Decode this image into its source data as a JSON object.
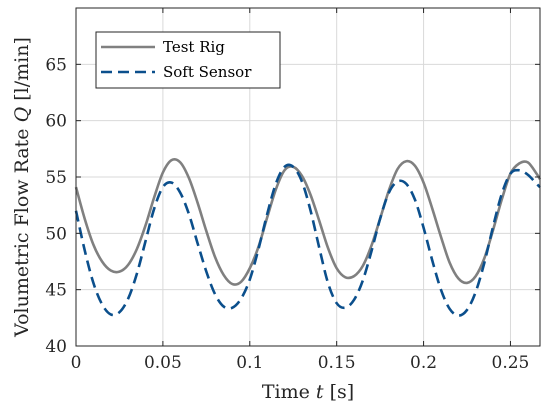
{
  "chart_data": {
    "type": "line",
    "title": "",
    "xlabel": "Time",
    "xlabel_symbol": "t",
    "xlabel_unit": "[s]",
    "ylabel": "Volumetric Flow Rate",
    "ylabel_symbol": "Q",
    "ylabel_unit": "[l/min]",
    "xlim": [
      0,
      0.267
    ],
    "ylim": [
      40,
      70
    ],
    "xticks": [
      0,
      0.05,
      0.1,
      0.15,
      0.2,
      0.25
    ],
    "xtick_labels": [
      "0",
      "0.05",
      "0.1",
      "0.15",
      "0.2",
      "0.25"
    ],
    "yticks": [
      40,
      45,
      50,
      55,
      60,
      65
    ],
    "ytick_labels": [
      "40",
      "45",
      "50",
      "55",
      "60",
      "65"
    ],
    "grid": true,
    "legend_position": "top-left",
    "series": [
      {
        "name": "Test Rig",
        "color": "#808080",
        "style": "solid",
        "x": [
          0,
          0.005,
          0.01,
          0.015,
          0.02,
          0.025,
          0.03,
          0.035,
          0.04,
          0.045,
          0.05,
          0.055,
          0.06,
          0.065,
          0.07,
          0.075,
          0.08,
          0.085,
          0.09,
          0.095,
          0.1,
          0.105,
          0.11,
          0.115,
          0.12,
          0.125,
          0.13,
          0.135,
          0.14,
          0.145,
          0.15,
          0.155,
          0.16,
          0.165,
          0.17,
          0.175,
          0.18,
          0.185,
          0.19,
          0.195,
          0.2,
          0.205,
          0.21,
          0.215,
          0.22,
          0.225,
          0.23,
          0.235,
          0.24,
          0.245,
          0.25,
          0.255,
          0.26,
          0.265,
          0.267
        ],
        "y": [
          54.1,
          51.3,
          49.0,
          47.5,
          46.7,
          46.6,
          47.2,
          48.6,
          50.7,
          53.2,
          55.4,
          56.5,
          56.3,
          54.9,
          52.7,
          50.2,
          47.9,
          46.3,
          45.5,
          45.7,
          46.9,
          48.8,
          51.4,
          53.9,
          55.6,
          55.9,
          55.1,
          53.4,
          51.1,
          48.7,
          46.9,
          46.1,
          46.2,
          47.1,
          48.9,
          51.3,
          53.8,
          55.7,
          56.4,
          56.0,
          54.5,
          52.2,
          49.7,
          47.4,
          46.0,
          45.6,
          46.2,
          47.8,
          50.3,
          53.0,
          55.3,
          56.2,
          56.3,
          55.3,
          54.8
        ]
      },
      {
        "name": "Soft Sensor",
        "color": "#0b4f8c",
        "style": "dashed",
        "x": [
          0,
          0.005,
          0.01,
          0.015,
          0.02,
          0.025,
          0.03,
          0.035,
          0.04,
          0.045,
          0.05,
          0.055,
          0.06,
          0.065,
          0.07,
          0.075,
          0.08,
          0.085,
          0.09,
          0.095,
          0.1,
          0.105,
          0.11,
          0.115,
          0.12,
          0.125,
          0.13,
          0.135,
          0.14,
          0.145,
          0.15,
          0.155,
          0.16,
          0.165,
          0.17,
          0.175,
          0.18,
          0.185,
          0.19,
          0.195,
          0.2,
          0.205,
          0.21,
          0.215,
          0.22,
          0.225,
          0.23,
          0.235,
          0.24,
          0.245,
          0.25,
          0.255,
          0.26,
          0.265,
          0.267
        ],
        "y": [
          52.0,
          48.5,
          45.6,
          43.7,
          42.8,
          43.0,
          44.2,
          46.4,
          49.3,
          52.2,
          54.1,
          54.5,
          53.6,
          51.7,
          49.1,
          46.6,
          44.6,
          43.5,
          43.4,
          44.2,
          45.9,
          48.6,
          51.7,
          54.4,
          55.9,
          55.9,
          54.6,
          52.0,
          48.7,
          45.6,
          43.8,
          43.4,
          44.1,
          45.8,
          48.4,
          51.3,
          53.6,
          54.6,
          54.4,
          53.0,
          50.5,
          47.6,
          45.0,
          43.3,
          42.7,
          43.2,
          44.8,
          47.4,
          50.6,
          53.5,
          55.3,
          55.6,
          55.2,
          54.4,
          54.1
        ]
      }
    ]
  }
}
